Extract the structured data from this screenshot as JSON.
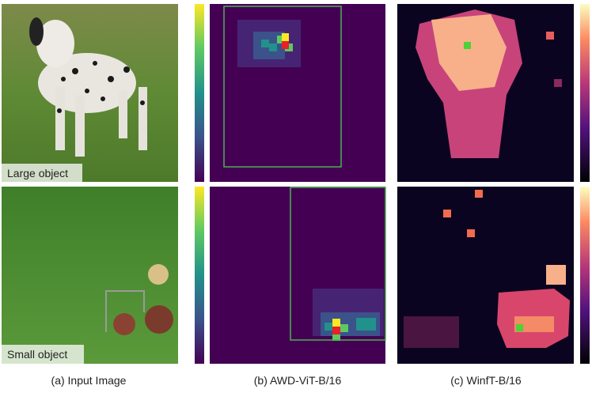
{
  "input_labels": [
    "Large object",
    "Small object"
  ],
  "captions": [
    "(a) Input Image",
    "(b) AWD-ViT-B/16",
    "(c) WinfT-B/16"
  ]
}
